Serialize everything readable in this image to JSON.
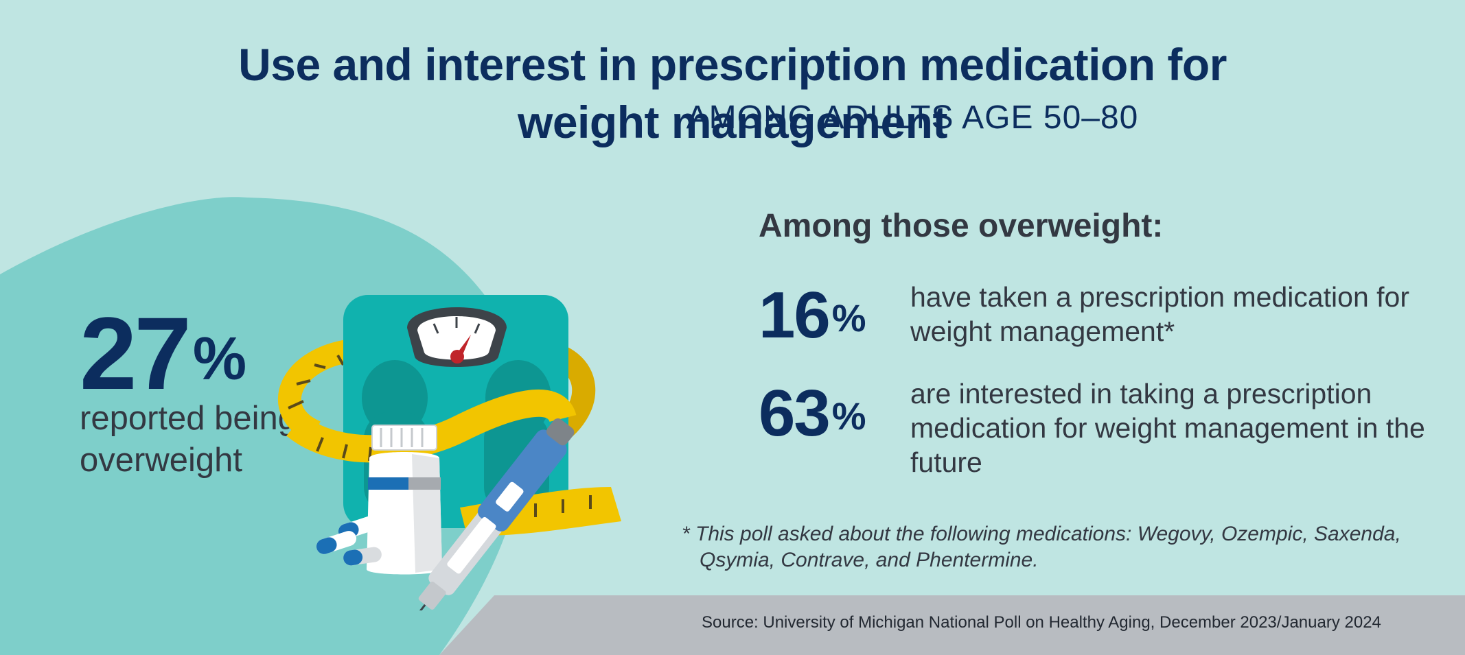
{
  "title": {
    "main": "Use and interest in prescription medication for weight management",
    "sub": "AMONG ADULTS AGE 50–80"
  },
  "left_stat": {
    "value": "27",
    "unit": "%",
    "caption": "reported being overweight"
  },
  "right_panel": {
    "heading": "Among those overweight:",
    "stats": [
      {
        "value": "16",
        "unit": "%",
        "text": "have taken a prescription medication for weight management*"
      },
      {
        "value": "63",
        "unit": "%",
        "text": "are interested in taking a prescription medication for weight management in the future"
      }
    ]
  },
  "footnote": "* This poll asked about the following medications: Wegovy, Ozempic, Saxenda, Qsymia, Contrave, and Phentermine.",
  "source": "Source: University of Michigan National Poll on Healthy Aging, December 2023/January 2024",
  "illustration": {
    "items": [
      "bathroom-scale",
      "tape-measure",
      "pill-bottle",
      "capsules",
      "injection-pen"
    ]
  },
  "colors": {
    "background": "#bfe5e2",
    "blob": "#7ecfca",
    "navy": "#0c2d5e",
    "text": "#333842",
    "footer_band": "#b8bcc1",
    "scale": "#10b2ae",
    "tape": "#f2c500"
  }
}
